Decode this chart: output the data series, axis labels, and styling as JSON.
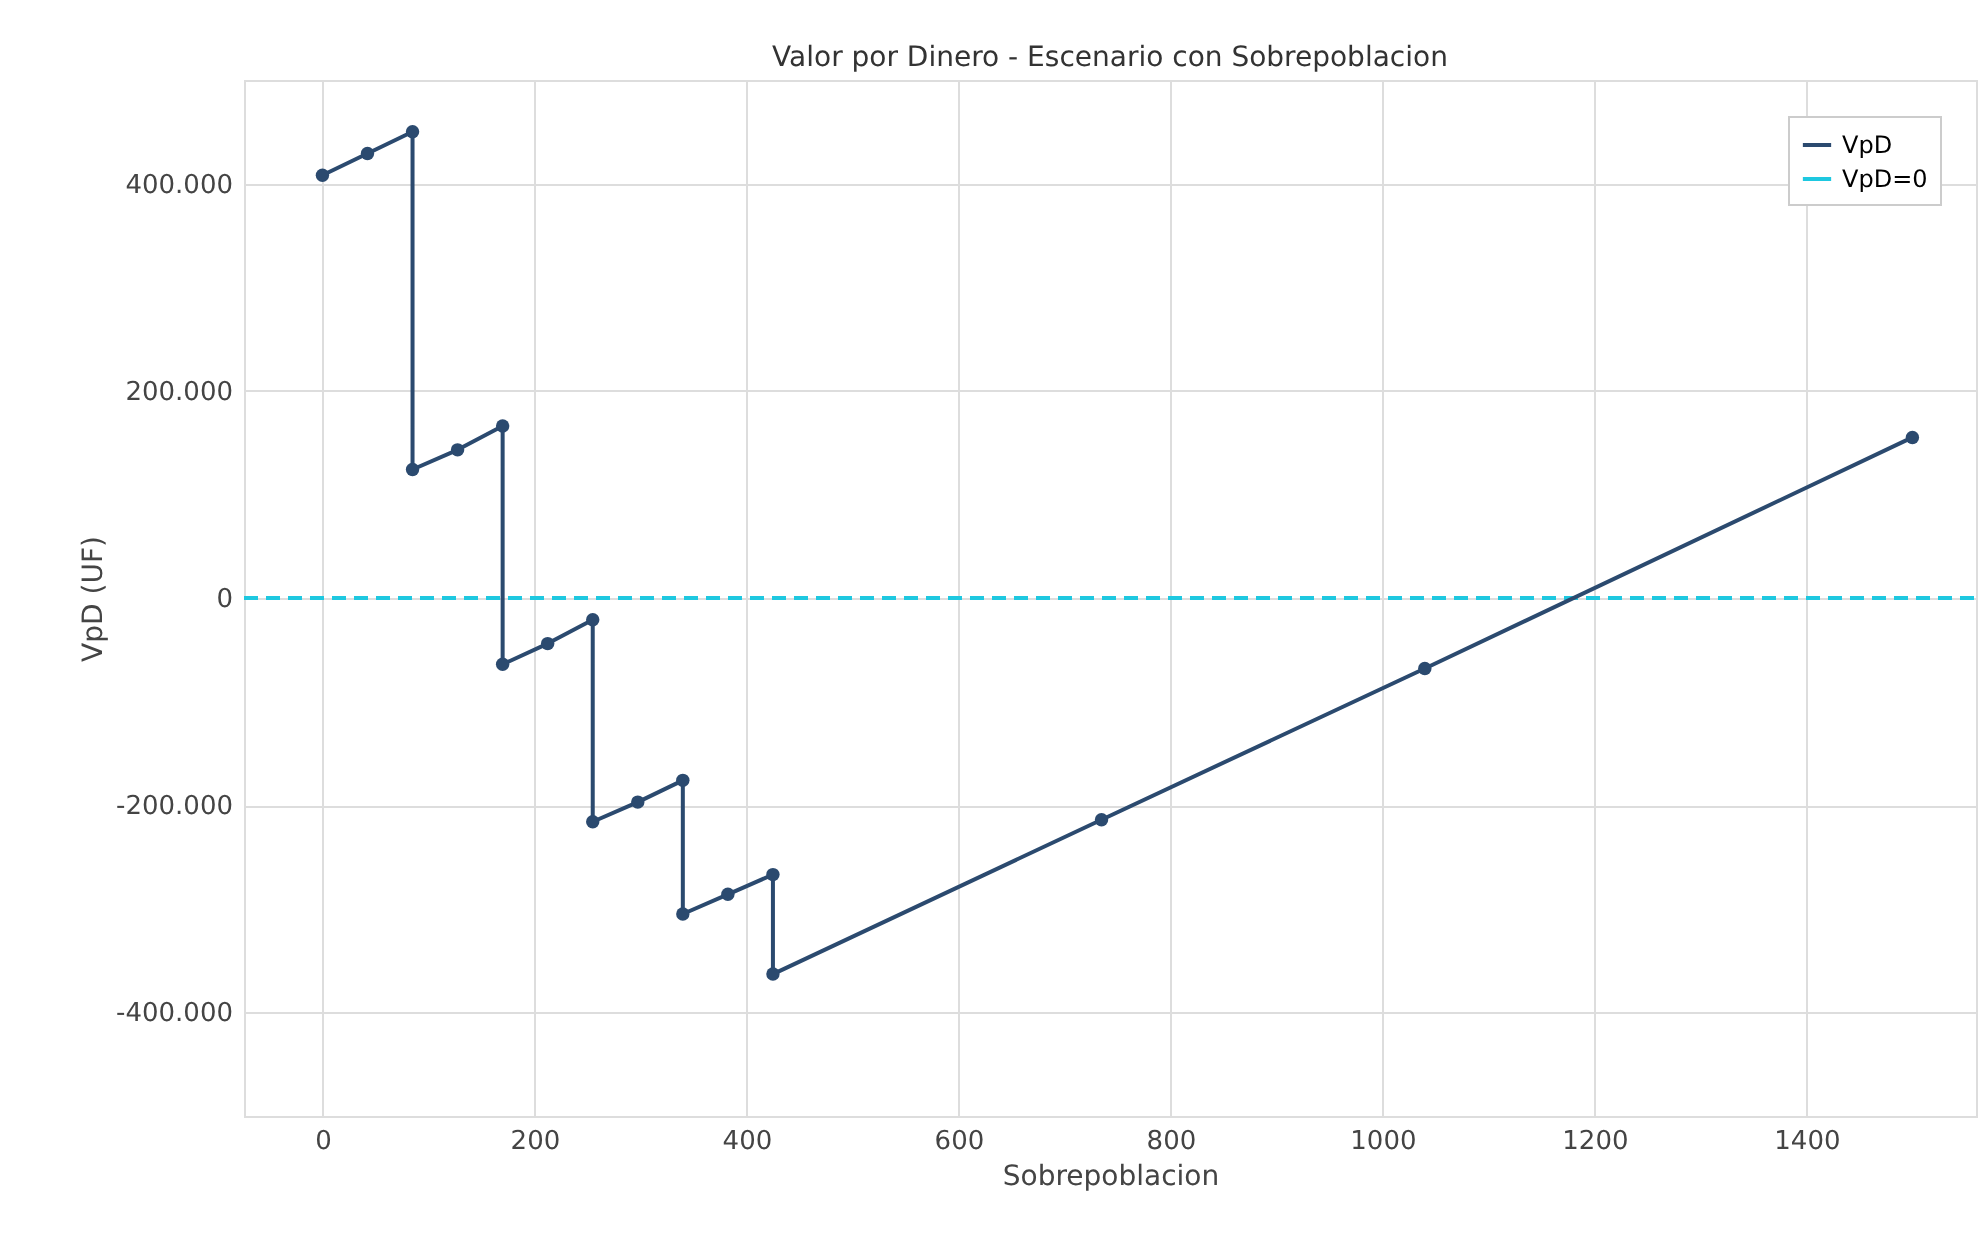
{
  "chart_data": {
    "type": "line",
    "title": "Valor por Dinero - Escenario con Sobrepoblacion",
    "xlabel": "Sobrepoblacion",
    "ylabel": "VpD (UF)",
    "x": [
      0,
      42.5,
      85,
      85,
      127.5,
      170,
      170,
      212.5,
      255,
      255,
      297.5,
      340,
      340,
      382.5,
      425,
      425,
      735,
      1040,
      1500
    ],
    "series": [
      {
        "name": "VpD",
        "color": "#2b4a6f",
        "values": [
          408000,
          429000,
          450000,
          124000,
          143000,
          166000,
          -64000,
          -44000,
          -21000,
          -216000,
          -197000,
          -176000,
          -305000,
          -286000,
          -267000,
          -363000,
          -214000,
          -68000,
          155000
        ]
      }
    ],
    "ref_lines": [
      {
        "axis": "y",
        "value": 0,
        "label": "VpD=0",
        "color": "#1ec8e0",
        "line_style": "dashed"
      }
    ],
    "xlim": [
      -74,
      1560
    ],
    "xticks": [
      0,
      200,
      400,
      600,
      800,
      1000,
      1200,
      1400
    ],
    "ylim": [
      -500000,
      500000
    ],
    "yticks": [
      {
        "value": -400000,
        "label": "-400.000"
      },
      {
        "value": -200000,
        "label": "-200.000"
      },
      {
        "value": 0,
        "label": "0"
      },
      {
        "value": 200000,
        "label": "200.000"
      },
      {
        "value": 400000,
        "label": "400.000"
      }
    ],
    "grid": true,
    "legend": "top right",
    "marker": "circle",
    "line_style": "solid"
  }
}
